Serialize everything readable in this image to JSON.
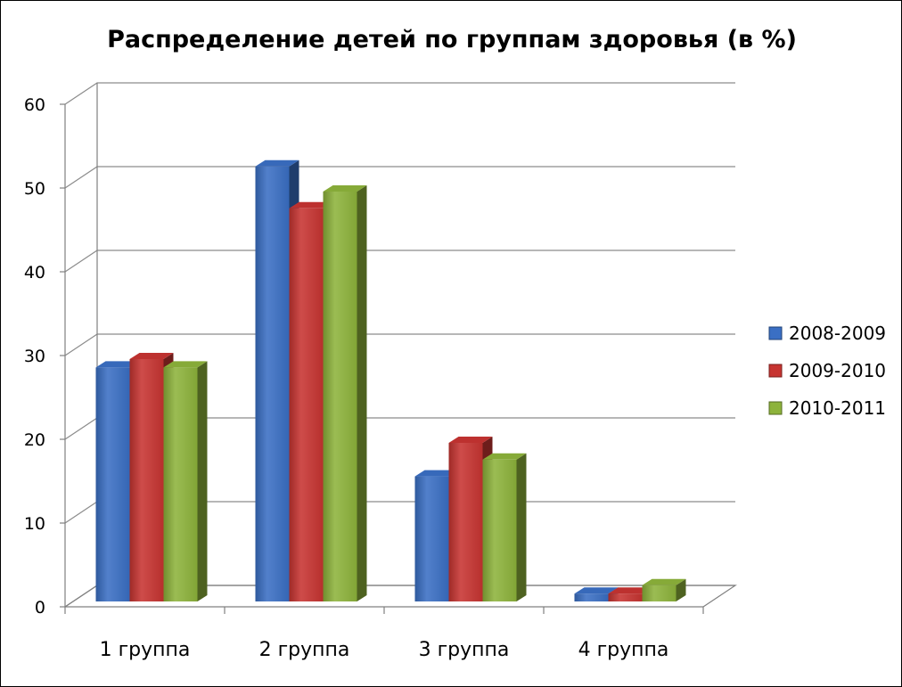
{
  "chart_data": {
    "type": "bar",
    "title": "Распределение детей по группам здоровья (в %)",
    "categories": [
      "1 группа",
      "2 группа",
      "3 группа",
      "4 группа"
    ],
    "series": [
      {
        "name": "2008-2009",
        "values": [
          29,
          53,
          16,
          2
        ],
        "color": "#3a6fc4"
      },
      {
        "name": "2009-2010",
        "values": [
          30,
          48,
          20,
          2
        ],
        "color": "#c73431"
      },
      {
        "name": "2010-2011",
        "values": [
          29,
          50,
          18,
          3
        ],
        "color": "#8db33b"
      }
    ],
    "yticks": [
      "0",
      "10",
      "20",
      "30",
      "40",
      "50",
      "60"
    ],
    "ylim": [
      0,
      60
    ],
    "grid": true,
    "legend_position": "right",
    "style": "3d-clustered-column"
  }
}
